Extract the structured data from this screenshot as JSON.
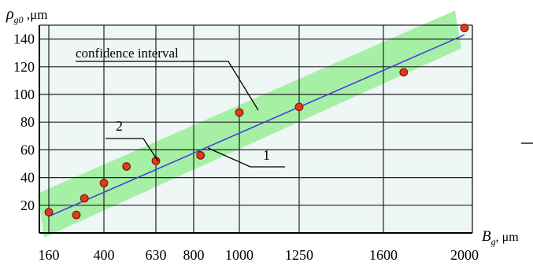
{
  "chart_data": {
    "type": "scatter",
    "title": "",
    "ylabel": "ρg0 ,μm",
    "ylabel_main": "ρ",
    "ylabel_sub": "g0",
    "ylabel_unit": " ,μm",
    "xlabel": "Bg, μm",
    "xlabel_main": "B",
    "xlabel_sub": "g",
    "xlabel_unit": ", μm",
    "x_ticks": [
      "160",
      "400",
      "630",
      "800",
      "1000",
      "1250",
      "1600",
      "2000"
    ],
    "y_ticks": [
      "20",
      "40",
      "60",
      "80",
      "100",
      "120",
      "140"
    ],
    "ylim": [
      0,
      150
    ],
    "grid": true,
    "x_scale": "nonlinear; tick labels placed at grid lines",
    "points": [
      {
        "x": 160,
        "y": 15
      },
      {
        "x": 280,
        "y": 13
      },
      {
        "x": 315,
        "y": 25
      },
      {
        "x": 400,
        "y": 36
      },
      {
        "x": 500,
        "y": 48
      },
      {
        "x": 630,
        "y": 52
      },
      {
        "x": 830,
        "y": 56
      },
      {
        "x": 1000,
        "y": 87
      },
      {
        "x": 1250,
        "y": 91
      },
      {
        "x": 1700,
        "y": 116
      },
      {
        "x": 2000,
        "y": 148
      }
    ],
    "fit_line": {
      "label": "1",
      "from": {
        "x": 160,
        "y": 12
      },
      "to": {
        "x": 2000,
        "y": 143
      }
    },
    "band": {
      "label": "confidence interval"
    },
    "annotations": [
      "confidence interval",
      "1",
      "2"
    ],
    "colors": {
      "band": "#a6f0a6",
      "fit_line": "#4b3fd8",
      "marker": "#e13a1f",
      "marker_edge": "#7a1a08",
      "grid": "#222222",
      "plot_bg": "#eef6f6"
    }
  }
}
